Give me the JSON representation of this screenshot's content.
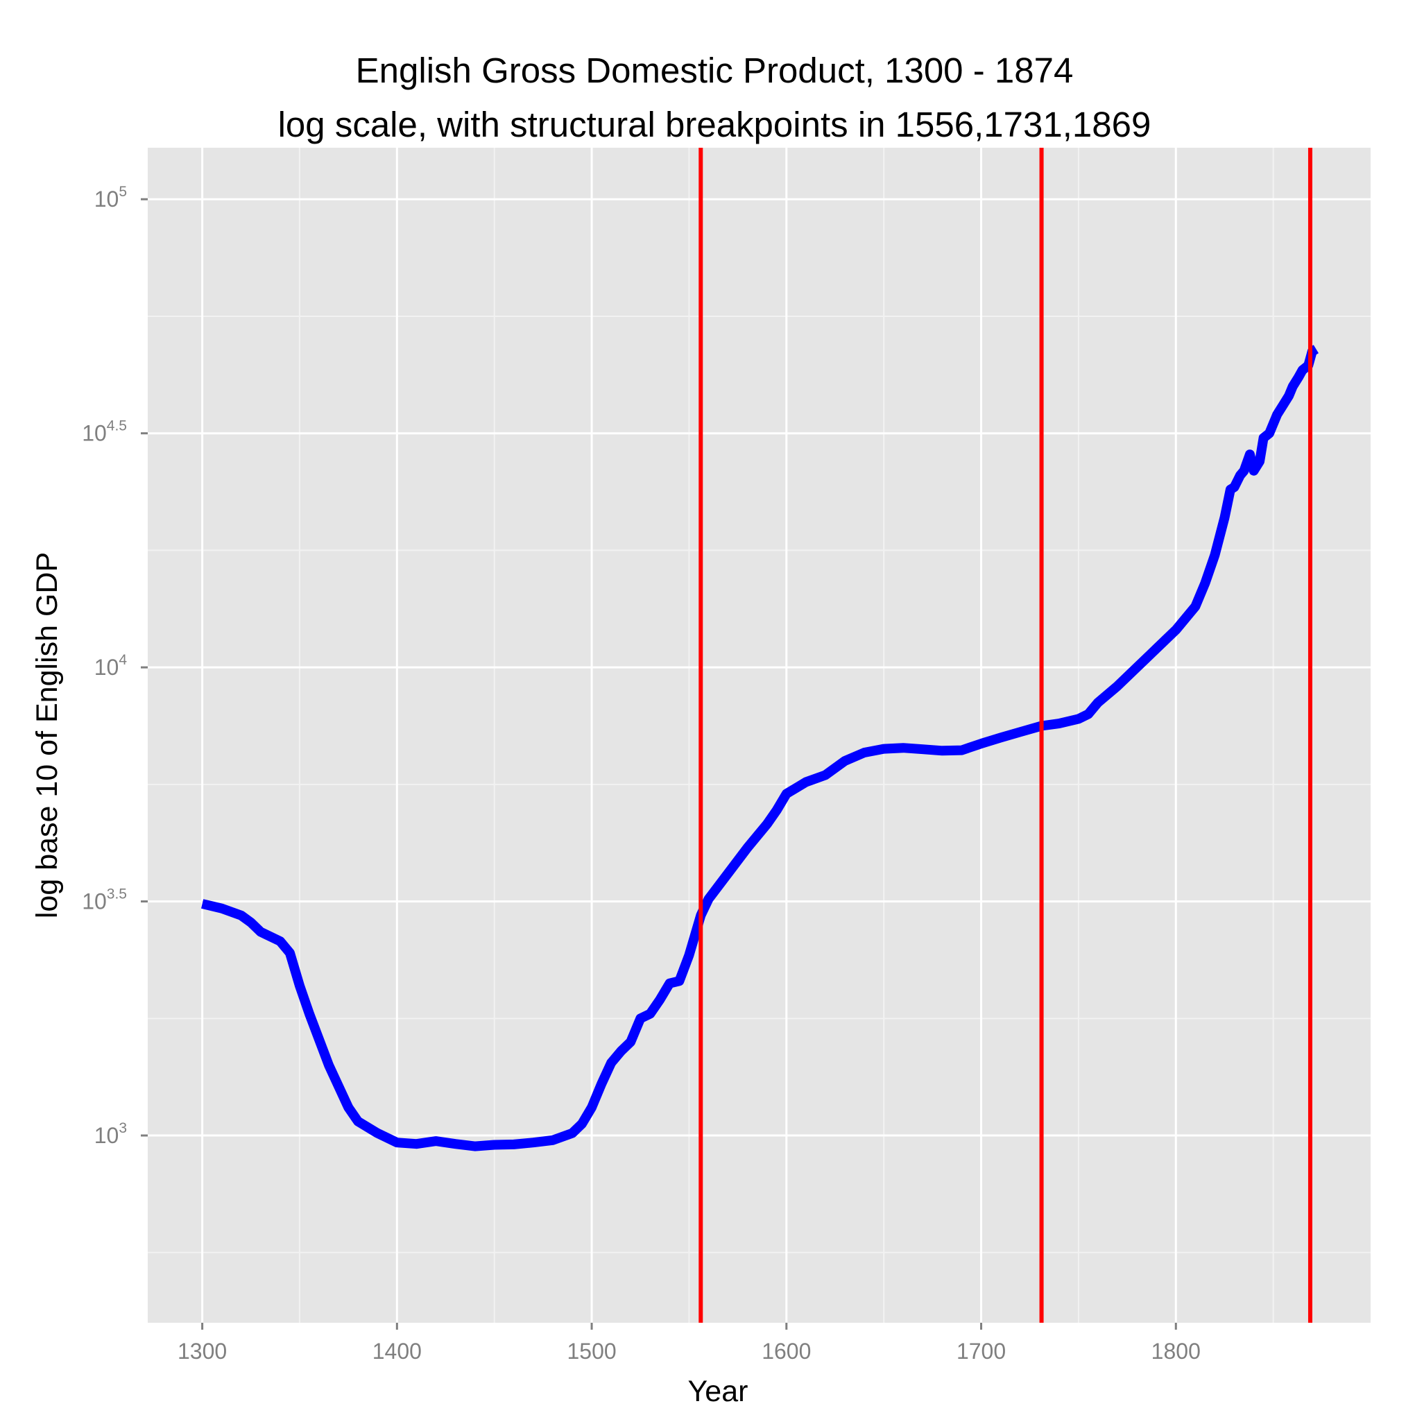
{
  "chart_data": {
    "type": "line",
    "title": "English Gross Domestic Product, 1300 - 1874",
    "subtitle": "log scale, with structural breakpoints in 1556,1731,1869",
    "xlabel": "Year",
    "ylabel": "log base 10 of English GDP",
    "x_ticks": [
      "1300",
      "1400",
      "1500",
      "1600",
      "1700",
      "1800"
    ],
    "x_tick_values": [
      1300,
      1400,
      1500,
      1600,
      1700,
      1800
    ],
    "y_ticks": [
      {
        "base": "10",
        "exp": "3",
        "log10": 3.0
      },
      {
        "base": "10",
        "exp": "3.5",
        "log10": 3.5
      },
      {
        "base": "10",
        "exp": "4",
        "log10": 4.0
      },
      {
        "base": "10",
        "exp": "4.5",
        "log10": 4.5
      },
      {
        "base": "10",
        "exp": "5",
        "log10": 5.0
      }
    ],
    "xlim": [
      1272,
      1900
    ],
    "ylim_log10": [
      2.6,
      5.11
    ],
    "y_scale": "log10",
    "grid": true,
    "background": "#e5e5e5",
    "series": [
      {
        "color": "#0000ff",
        "x": [
          1300,
          1310,
          1320,
          1325,
          1330,
          1340,
          1345,
          1350,
          1355,
          1365,
          1375,
          1380,
          1390,
          1400,
          1410,
          1420,
          1430,
          1440,
          1450,
          1460,
          1470,
          1480,
          1490,
          1495,
          1500,
          1505,
          1510,
          1515,
          1520,
          1525,
          1530,
          1535,
          1540,
          1545,
          1550,
          1556,
          1560,
          1570,
          1580,
          1590,
          1595,
          1600,
          1610,
          1620,
          1630,
          1640,
          1650,
          1660,
          1670,
          1680,
          1690,
          1700,
          1710,
          1720,
          1731,
          1740,
          1750,
          1755,
          1760,
          1770,
          1780,
          1790,
          1800,
          1810,
          1815,
          1820,
          1825,
          1828,
          1830,
          1833,
          1835,
          1838,
          1840,
          1843,
          1845,
          1848,
          1850,
          1852,
          1855,
          1858,
          1860,
          1863,
          1865,
          1868,
          1869,
          1870,
          1872
        ],
        "y": [
          3.495,
          3.485,
          3.47,
          3.455,
          3.435,
          3.415,
          3.39,
          3.32,
          3.26,
          3.15,
          3.06,
          3.03,
          3.005,
          2.985,
          2.982,
          2.988,
          2.982,
          2.977,
          2.98,
          2.981,
          2.985,
          2.99,
          3.005,
          3.025,
          3.06,
          3.11,
          3.155,
          3.18,
          3.2,
          3.25,
          3.26,
          3.29,
          3.325,
          3.33,
          3.385,
          3.47,
          3.505,
          3.56,
          3.615,
          3.665,
          3.695,
          3.73,
          3.755,
          3.77,
          3.8,
          3.818,
          3.826,
          3.828,
          3.825,
          3.822,
          3.823,
          3.837,
          3.85,
          3.862,
          3.875,
          3.88,
          3.89,
          3.9,
          3.925,
          3.96,
          4.0,
          4.04,
          4.08,
          4.13,
          4.18,
          4.24,
          4.32,
          4.38,
          4.385,
          4.41,
          4.42,
          4.455,
          4.42,
          4.44,
          4.49,
          4.5,
          4.52,
          4.54,
          4.56,
          4.58,
          4.6,
          4.62,
          4.635,
          4.645,
          4.66,
          4.675,
          4.68
        ]
      }
    ],
    "breakpoints": {
      "color": "#ff0000",
      "years": [
        1556,
        1731,
        1869
      ]
    }
  }
}
